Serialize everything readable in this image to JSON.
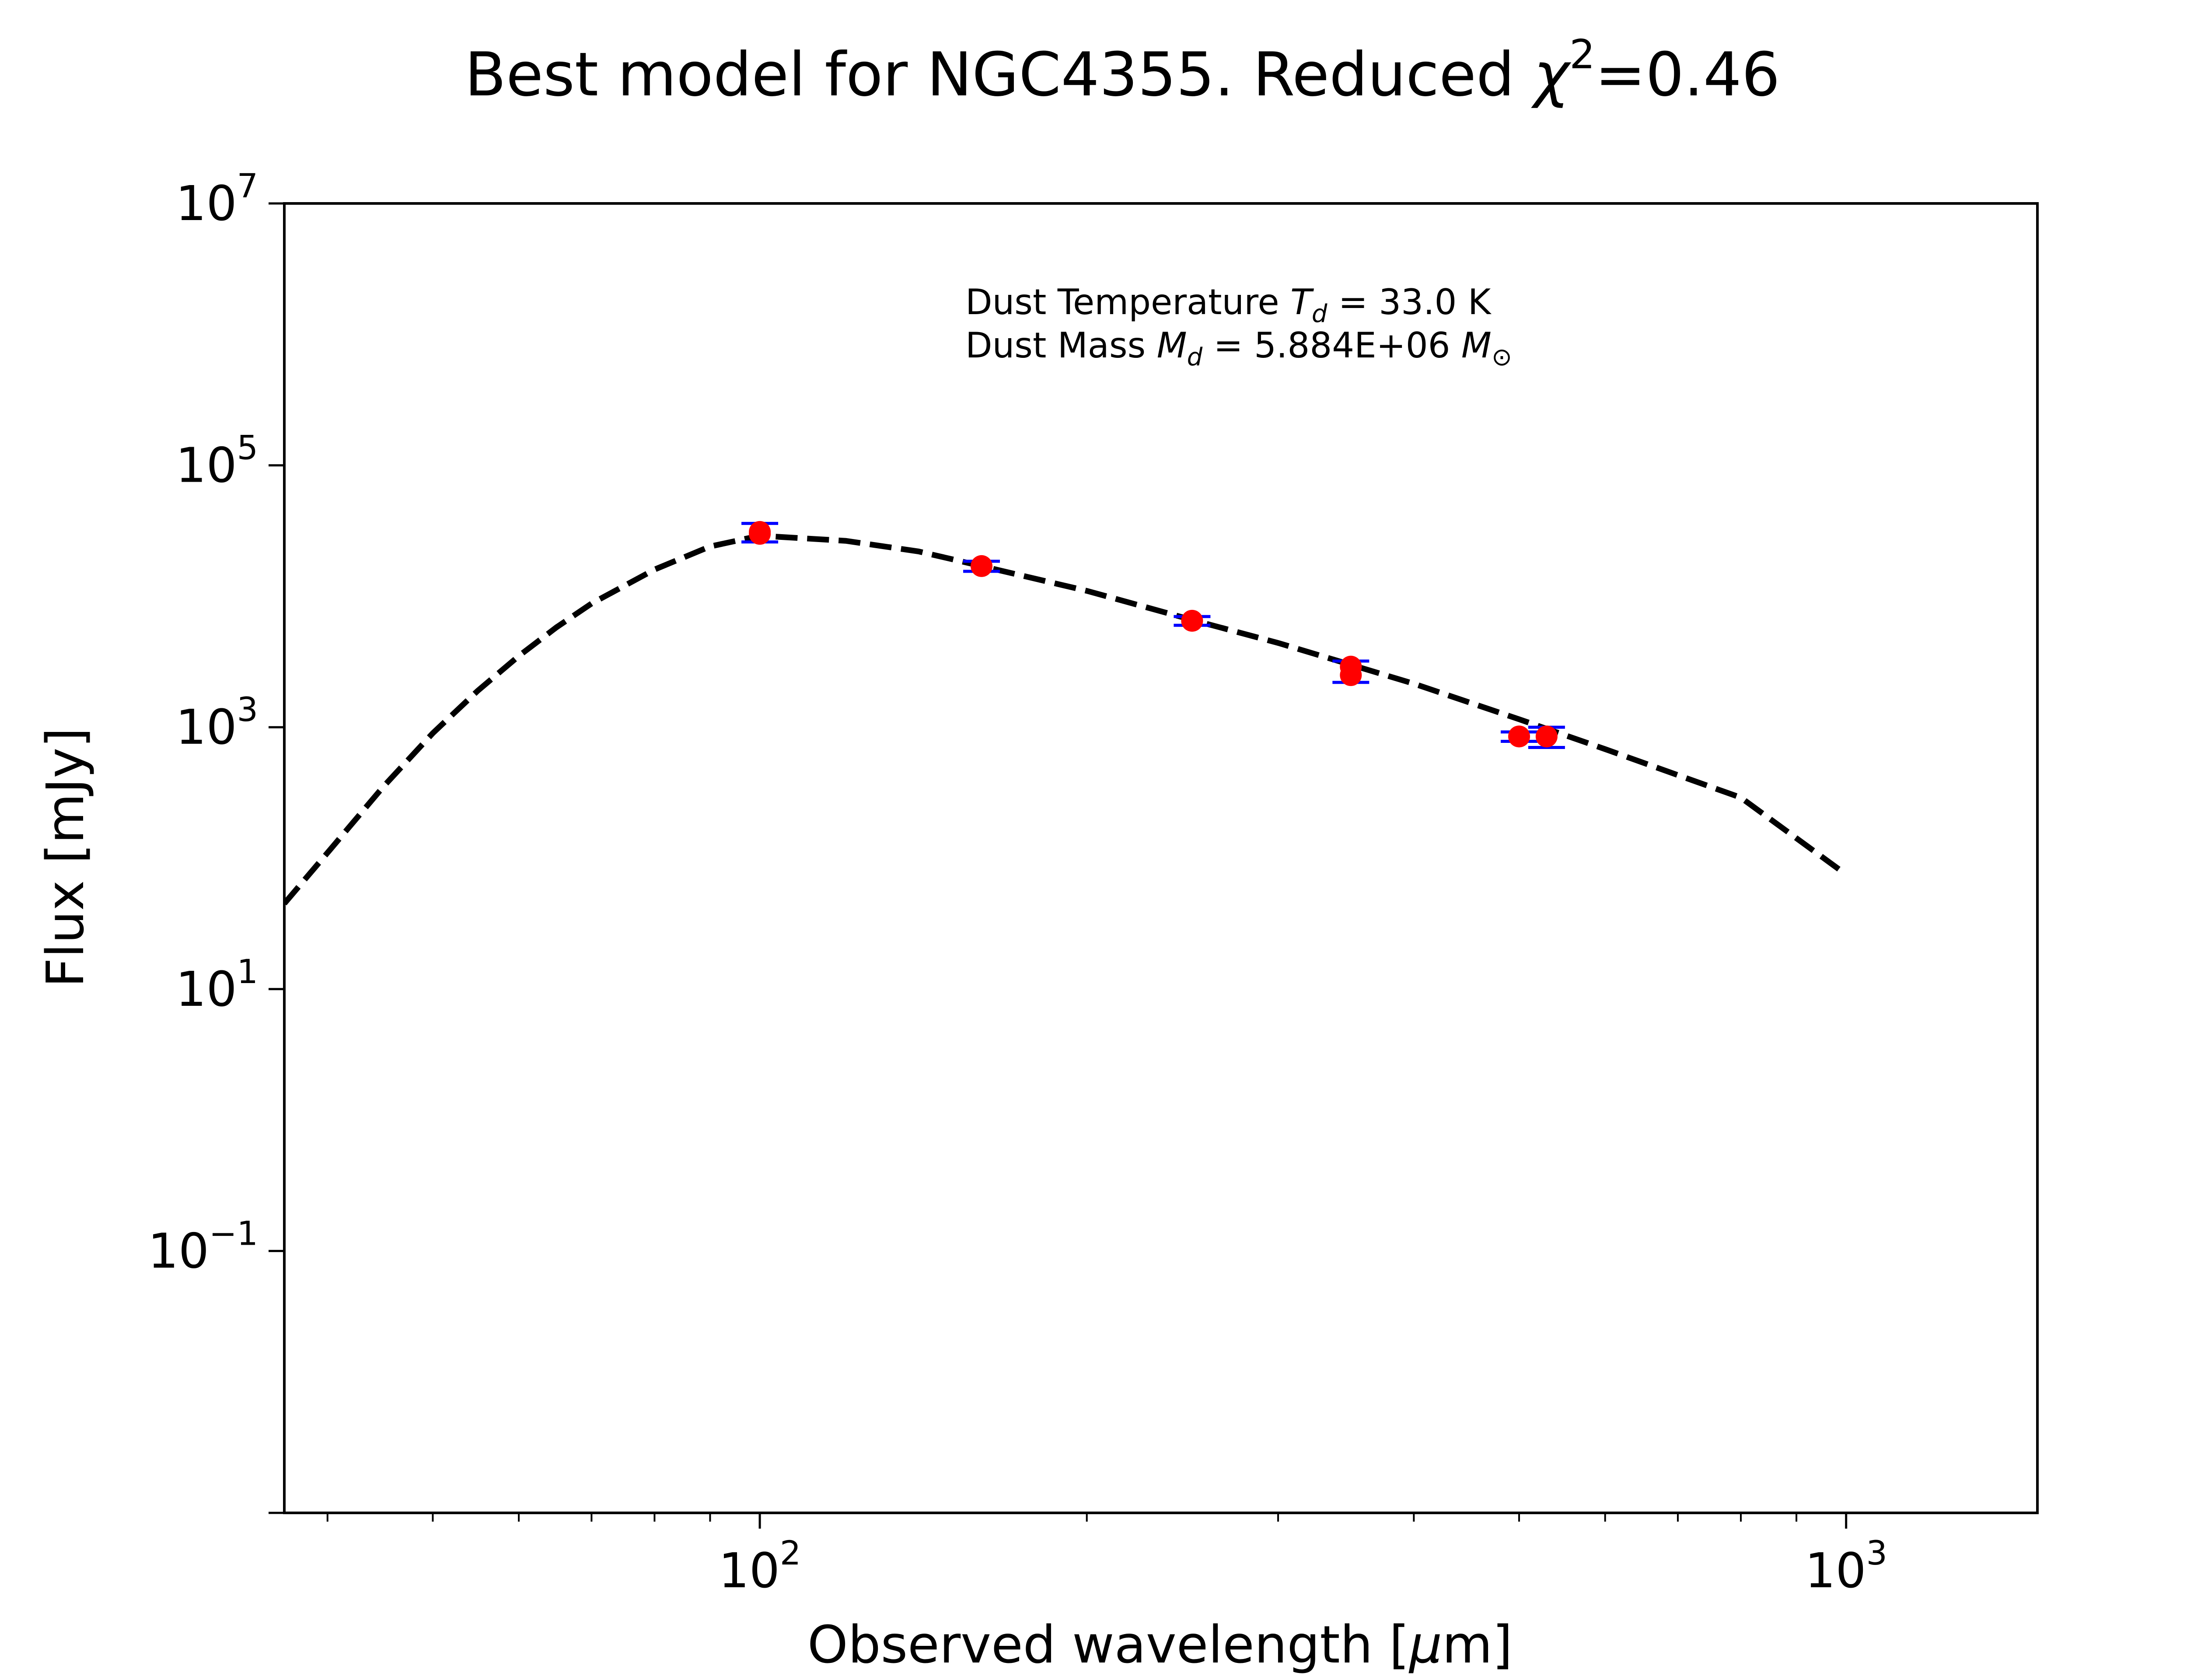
{
  "chart_data": {
    "type": "scatter",
    "title": {
      "prefix": "Best model for NGC4355. Reduced ",
      "chi_symbol": "χ",
      "chi_exp": "2",
      "suffix": "=0.46"
    },
    "xlabel": {
      "prefix": "Observed wavelength [",
      "mu": "μ",
      "suffix": "m]"
    },
    "ylabel": "Flux [mJy]",
    "xscale": "log",
    "yscale": "log",
    "xlim": [
      36.5,
      1500
    ],
    "ylim": [
      0.001,
      10000000
    ],
    "x_ticks": [
      {
        "value": 100,
        "base": "10",
        "exp": "2"
      },
      {
        "value": 1000,
        "base": "10",
        "exp": "3"
      }
    ],
    "y_ticks": [
      {
        "value": 0.1,
        "base": "10",
        "exp": "−1"
      },
      {
        "value": 10,
        "base": "10",
        "exp": "1"
      },
      {
        "value": 1000,
        "base": "10",
        "exp": "3"
      },
      {
        "value": 100000,
        "base": "10",
        "exp": "5"
      },
      {
        "value": 10000000,
        "base": "10",
        "exp": "7"
      }
    ],
    "annotations": {
      "temperature": {
        "text": "Dust Temperature ",
        "sym": "T",
        "sub": "d",
        "value": " = 33.0 K"
      },
      "mass": {
        "text": "Dust Mass ",
        "sym": "M",
        "sub": "d",
        "value": " = 5.884E+06 ",
        "unit": "M",
        "unit_sub": "⊙"
      }
    },
    "model": {
      "style": "dashed",
      "color": "#000000",
      "x": [
        36.5,
        40,
        45,
        50,
        55,
        60,
        65,
        70,
        80,
        90,
        100,
        120,
        140,
        160,
        200,
        250,
        300,
        350,
        400,
        500,
        600,
        800,
        1000
      ],
      "y": [
        45,
        110,
        350,
        900,
        1900,
        3500,
        5800,
        8800,
        16000,
        24000,
        29000,
        26500,
        22000,
        17000,
        11000,
        6600,
        4400,
        3000,
        2150,
        1150,
        680,
        290,
        75
      ]
    },
    "observations": {
      "marker_color": "#ff0000",
      "errorbar_color": "#0000ff",
      "points": [
        {
          "x": 100,
          "y": 30000,
          "yerr_low": 26000,
          "yerr_high": 36000
        },
        {
          "x": 100,
          "y": 31000
        },
        {
          "x": 160,
          "y": 17000,
          "yerr_low": 15500,
          "yerr_high": 18500
        },
        {
          "x": 250,
          "y": 6500,
          "yerr_low": 6000,
          "yerr_high": 7000
        },
        {
          "x": 350,
          "y": 2500,
          "yerr_low": 2200,
          "yerr_high": 3200
        },
        {
          "x": 350,
          "y": 2900
        },
        {
          "x": 500,
          "y": 850,
          "yerr_low": 780,
          "yerr_high": 920
        },
        {
          "x": 530,
          "y": 850,
          "yerr_low": 700,
          "yerr_high": 1000
        }
      ]
    }
  }
}
